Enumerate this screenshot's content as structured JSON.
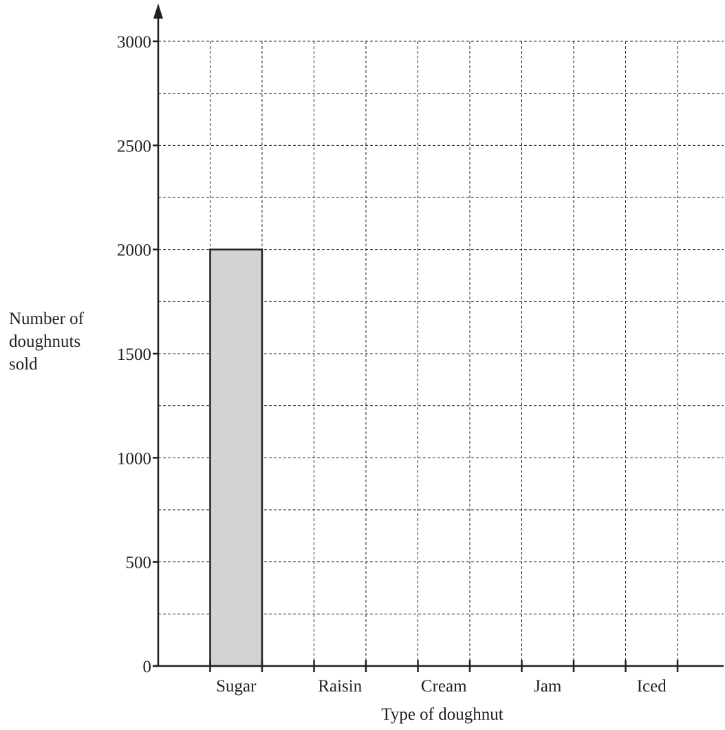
{
  "chart_data": {
    "type": "bar",
    "title": "",
    "xlabel": "Type of doughnut",
    "ylabel_lines": [
      "Number of",
      "doughnuts",
      "sold"
    ],
    "categories": [
      "Sugar",
      "Raisin",
      "Cream",
      "Jam",
      "Iced"
    ],
    "values": [
      2000,
      null,
      null,
      null,
      null
    ],
    "ylim": [
      0,
      3000
    ],
    "yticks": [
      0,
      500,
      1000,
      1500,
      2000,
      2500,
      3000
    ],
    "ytick_labels": [
      "0",
      "500",
      "1000",
      "1500",
      "2000",
      "2500",
      "3000"
    ],
    "minor_gridline_step": 250,
    "grid": true,
    "bar_color": "#d1d3d4",
    "line_color": "#231f20"
  }
}
